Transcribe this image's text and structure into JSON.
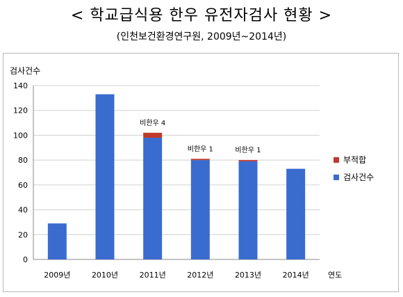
{
  "title": "< 학교급식용 한우 유전자검사 현황 >",
  "subtitle": "(인천보건환경연구원, 2009년~2014년)",
  "colors": {
    "total": "#3a6ccf",
    "fail": "#c0392b",
    "grid": "#d0d0d0",
    "axis": "#888888"
  },
  "chart_data": {
    "type": "bar",
    "stacked": true,
    "ylabel": "검사건수",
    "xlabel": "연도",
    "ylim": [
      0,
      140
    ],
    "yticks": [
      0,
      20,
      40,
      60,
      80,
      100,
      120,
      140
    ],
    "categories": [
      "2009년",
      "2010년",
      "2011년",
      "2012년",
      "2013년",
      "2014년"
    ],
    "series": [
      {
        "name": "검사건수",
        "values": [
          29,
          133,
          98,
          80,
          79,
          73
        ]
      },
      {
        "name": "부적합",
        "values": [
          0,
          0,
          4,
          1,
          1,
          0
        ]
      }
    ],
    "annotations": [
      {
        "category": "2011년",
        "text": "비한우 4"
      },
      {
        "category": "2012년",
        "text": "비한우 1"
      },
      {
        "category": "2013년",
        "text": "비한우 1"
      }
    ],
    "legend": {
      "position": "right",
      "order": [
        "부적합",
        "검사건수"
      ]
    },
    "grid": true
  }
}
